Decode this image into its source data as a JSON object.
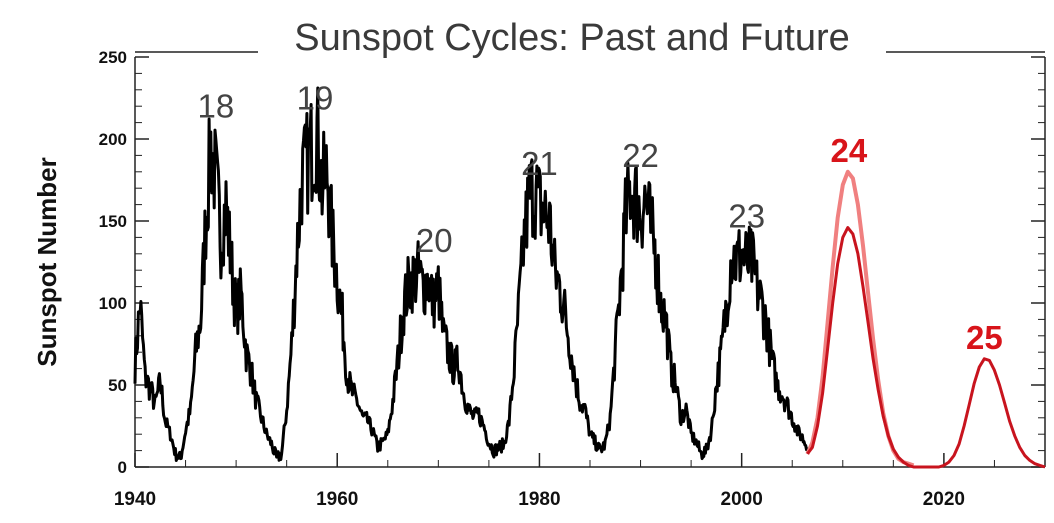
{
  "chart_data": {
    "type": "line",
    "title": "Sunspot Cycles: Past and Future",
    "xlabel": "",
    "ylabel": "Sunspot Number",
    "xlim": [
      1940,
      2030
    ],
    "ylim": [
      0,
      250
    ],
    "x_ticks": [
      "1940",
      "1960",
      "1980",
      "2000",
      "2020"
    ],
    "y_ticks": [
      "0",
      "50",
      "100",
      "150",
      "200",
      "250"
    ],
    "grid": false,
    "colors": {
      "observed": "#000000",
      "prediction_high": "#f08080",
      "prediction_low": "#c8141e",
      "prediction_label": "#d8141a",
      "observed_label": "#444444"
    },
    "cycle_labels": [
      {
        "text": "18",
        "x": 1948.0,
        "y": 213,
        "predicted": false
      },
      {
        "text": "19",
        "x": 1957.8,
        "y": 218,
        "predicted": false
      },
      {
        "text": "20",
        "x": 1969.6,
        "y": 131,
        "predicted": false
      },
      {
        "text": "21",
        "x": 1980.0,
        "y": 178,
        "predicted": false
      },
      {
        "text": "22",
        "x": 1990.0,
        "y": 183,
        "predicted": false
      },
      {
        "text": "23",
        "x": 2000.5,
        "y": 146,
        "predicted": false
      },
      {
        "text": "24",
        "x": 2010.6,
        "y": 186,
        "predicted": true
      },
      {
        "text": "25",
        "x": 2024.0,
        "y": 72,
        "predicted": true
      }
    ],
    "series": [
      {
        "role": "observed",
        "x": [
          1940.0,
          1940.5,
          1941.0,
          1941.5,
          1942.0,
          1942.5,
          1943.0,
          1943.5,
          1944.0,
          1944.5,
          1945.0,
          1945.5,
          1946.0,
          1946.5,
          1947.0,
          1947.5,
          1948.0,
          1948.5,
          1949.0,
          1949.5,
          1950.0,
          1950.5,
          1951.0,
          1951.5,
          1952.0,
          1952.5,
          1953.0,
          1953.5,
          1954.0,
          1954.5,
          1955.0,
          1955.5,
          1956.0,
          1956.5,
          1957.0,
          1957.5,
          1958.0,
          1958.5,
          1959.0,
          1959.5,
          1960.0,
          1960.5,
          1961.0,
          1961.5,
          1962.0,
          1962.5,
          1963.0,
          1963.5,
          1964.0,
          1964.5,
          1965.0,
          1965.5,
          1966.0,
          1966.5,
          1967.0,
          1967.5,
          1968.0,
          1968.5,
          1969.0,
          1969.5,
          1970.0,
          1970.5,
          1971.0,
          1971.5,
          1972.0,
          1972.5,
          1973.0,
          1973.5,
          1974.0,
          1974.5,
          1975.0,
          1975.5,
          1976.0,
          1976.5,
          1977.0,
          1977.5,
          1978.0,
          1978.5,
          1979.0,
          1979.5,
          1980.0,
          1980.5,
          1981.0,
          1981.5,
          1982.0,
          1982.5,
          1983.0,
          1983.5,
          1984.0,
          1984.5,
          1985.0,
          1985.5,
          1986.0,
          1986.5,
          1987.0,
          1987.5,
          1988.0,
          1988.5,
          1989.0,
          1989.5,
          1990.0,
          1990.5,
          1991.0,
          1991.5,
          1992.0,
          1992.5,
          1993.0,
          1993.5,
          1994.0,
          1994.5,
          1995.0,
          1995.5,
          1996.0,
          1996.5,
          1997.0,
          1997.5,
          1998.0,
          1998.5,
          1999.0,
          1999.5,
          2000.0,
          2000.5,
          2001.0,
          2001.5,
          2002.0,
          2002.5,
          2003.0,
          2003.5,
          2004.0,
          2004.5,
          2005.0,
          2005.5,
          2006.0,
          2006.5
        ],
        "y": [
          62,
          100,
          55,
          48,
          38,
          52,
          28,
          20,
          8,
          5,
          22,
          35,
          70,
          90,
          150,
          195,
          175,
          140,
          160,
          125,
          95,
          105,
          70,
          58,
          40,
          30,
          20,
          14,
          5,
          8,
          35,
          75,
          130,
          175,
          185,
          195,
          205,
          170,
          180,
          140,
          115,
          90,
          55,
          45,
          40,
          30,
          28,
          22,
          12,
          15,
          20,
          40,
          65,
          95,
          110,
          115,
          118,
          110,
          115,
          100,
          110,
          80,
          70,
          60,
          65,
          45,
          35,
          30,
          32,
          25,
          15,
          10,
          12,
          14,
          28,
          60,
          100,
          140,
          165,
          170,
          160,
          155,
          150,
          120,
          110,
          95,
          75,
          55,
          40,
          35,
          20,
          15,
          10,
          14,
          30,
          70,
          110,
          150,
          170,
          165,
          155,
          165,
          145,
          130,
          100,
          90,
          60,
          50,
          30,
          35,
          20,
          15,
          8,
          10,
          22,
          50,
          70,
          100,
          130,
          125,
          130,
          125,
          125,
          110,
          100,
          85,
          65,
          50,
          45,
          38,
          30,
          22,
          18,
          12
        ]
      },
      {
        "role": "prediction-high",
        "x": [
          2006.5,
          2007.0,
          2007.5,
          2008.0,
          2008.5,
          2009.0,
          2009.5,
          2010.0,
          2010.5,
          2011.0,
          2011.5,
          2012.0,
          2012.5,
          2013.0,
          2013.5,
          2014.0,
          2014.5,
          2015.0,
          2015.5,
          2016.0,
          2016.5,
          2017.0
        ],
        "y": [
          8,
          15,
          30,
          55,
          88,
          122,
          152,
          172,
          180,
          176,
          160,
          135,
          106,
          78,
          53,
          33,
          19,
          10,
          5,
          3,
          2,
          1
        ]
      },
      {
        "role": "prediction-low",
        "x": [
          2006.5,
          2007.0,
          2007.5,
          2008.0,
          2008.5,
          2009.0,
          2009.5,
          2010.0,
          2010.5,
          2011.0,
          2011.5,
          2012.0,
          2012.5,
          2013.0,
          2013.5,
          2014.0,
          2014.5,
          2015.0,
          2015.5,
          2016.0,
          2016.5,
          2017.0,
          2017.5,
          2018.0,
          2018.5,
          2019.0,
          2019.5,
          2020.0,
          2020.5,
          2021.0,
          2021.5,
          2022.0,
          2022.5,
          2023.0,
          2023.5,
          2024.0,
          2024.5,
          2025.0,
          2025.5,
          2026.0,
          2026.5,
          2027.0,
          2027.5,
          2028.0,
          2028.5,
          2029.0,
          2029.5,
          2030.0
        ],
        "y": [
          8,
          12,
          25,
          45,
          72,
          100,
          124,
          140,
          146,
          142,
          130,
          110,
          88,
          66,
          47,
          31,
          19,
          11,
          6,
          3,
          1,
          0,
          0,
          0,
          0,
          0,
          0,
          1,
          3,
          7,
          14,
          25,
          38,
          51,
          61,
          66,
          65,
          59,
          50,
          39,
          28,
          19,
          12,
          7,
          4,
          2,
          1,
          0
        ]
      }
    ]
  }
}
